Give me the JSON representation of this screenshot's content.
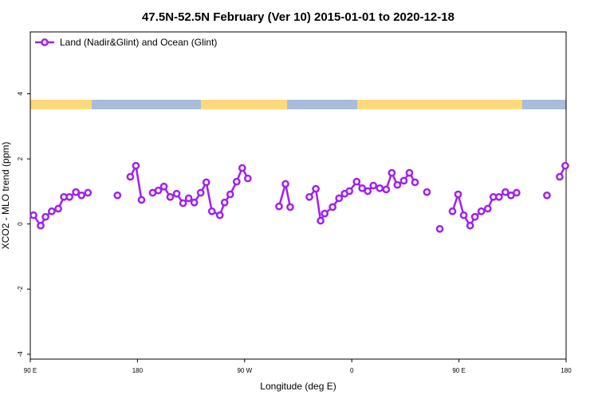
{
  "chart_data": {
    "type": "line",
    "title": "47.5N-52.5N February (Ver 10)   2015-01-01 to 2020-12-18",
    "xlabel": "Longitude (deg E)",
    "ylabel": "XCO2 - MLO trend (ppm)",
    "xlim": [
      90,
      540
    ],
    "xticks": [
      {
        "value": 90,
        "label": "90 E"
      },
      180,
      {
        "value": 270,
        "label": "90 W"
      },
      {
        "value": 360,
        "label": "0"
      },
      {
        "value": 450,
        "label": "90 E"
      },
      {
        "value": 540,
        "label": "180"
      }
    ],
    "ylim": [
      -4.15,
      5.9
    ],
    "yticks": [
      -4,
      -2,
      0,
      2,
      4
    ],
    "legend": "top-left",
    "series": [
      {
        "name": "Land (Nadir&Glint) and Ocean (Glint)",
        "color": "#a020f0",
        "x": [
          92.7,
          98.7,
          102.8,
          108,
          113.5,
          118.2,
          122.9,
          128.3,
          133,
          138.4,
          null,
          163.2,
          null,
          174,
          178.7,
          183.4,
          null,
          192.8,
          197.5,
          202.2,
          207.5,
          212.9,
          218.3,
          223,
          227.7,
          233.1,
          237.8,
          242.5,
          249.2,
          253.2,
          257.9,
          263.3,
          268,
          272.7,
          null,
          298.9,
          304.3,
          308.3,
          null,
          324.4,
          329.8,
          333.8,
          337.2,
          343.9,
          349.3,
          354,
          358,
          364.1,
          368.7,
          373.4,
          378.1,
          383.5,
          388.9,
          393.6,
          398.3,
          403.7,
          408.4,
          413.1,
          null,
          423.1,
          null,
          433.9,
          null,
          444.6,
          449.3,
          454,
          459.4,
          463.4,
          468.8,
          474.2,
          478.9,
          483.6,
          489,
          493.7,
          498.4,
          null,
          523.9,
          null,
          534.6,
          539.3
        ],
        "values": [
          0.27,
          -0.05,
          0.22,
          0.39,
          0.47,
          0.83,
          0.83,
          0.98,
          0.88,
          0.96,
          null,
          0.88,
          null,
          1.45,
          1.79,
          0.74,
          null,
          0.96,
          1.03,
          1.15,
          0.83,
          0.93,
          0.64,
          0.79,
          0.66,
          0.96,
          1.28,
          0.39,
          0.27,
          0.66,
          0.91,
          1.3,
          1.72,
          1.4,
          null,
          0.54,
          1.23,
          0.52,
          null,
          0.83,
          1.08,
          0.1,
          0.32,
          0.52,
          0.79,
          0.93,
          1.01,
          1.3,
          1.1,
          1.01,
          1.18,
          1.1,
          1.06,
          1.57,
          1.2,
          1.33,
          1.57,
          1.28,
          null,
          0.98,
          null,
          -0.15,
          null,
          0.39,
          0.91,
          0.27,
          -0.05,
          0.22,
          0.39,
          0.47,
          0.83,
          0.83,
          0.98,
          0.88,
          0.96,
          null,
          0.88,
          null,
          1.45,
          1.79
        ]
      }
    ]
  }
}
